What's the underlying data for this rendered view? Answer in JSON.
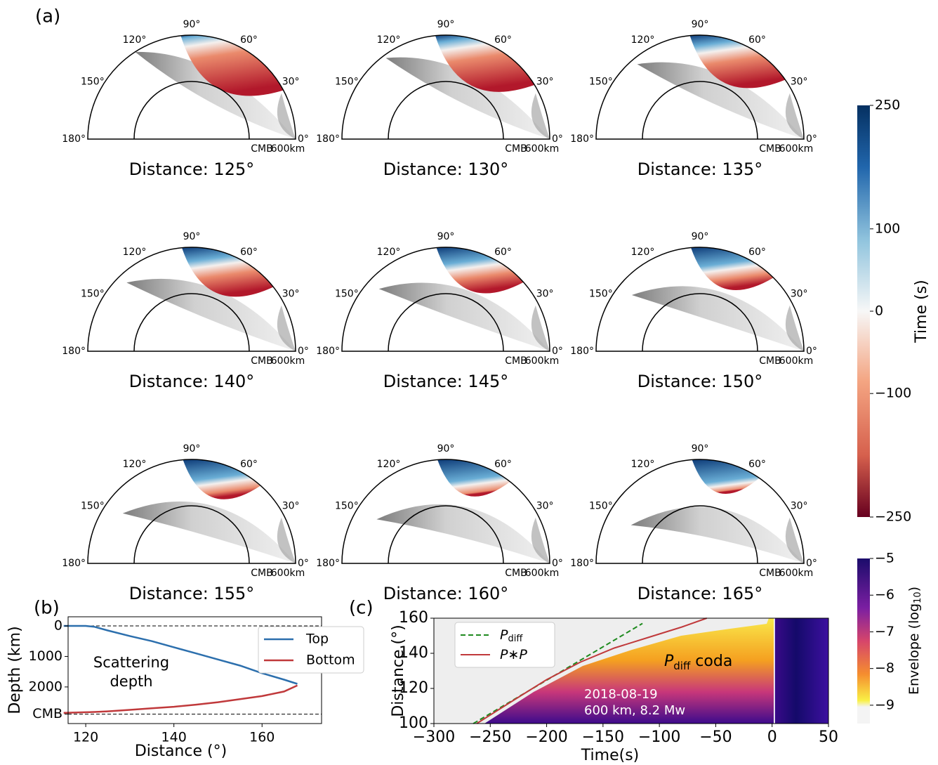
{
  "panel_labels": [
    "(a)",
    "(b)",
    "(c)"
  ],
  "chart_data": [
    {
      "type": "polar",
      "titles": [
        "Distance: 125°",
        "Distance: 130°",
        "Distance: 135°",
        "Distance: 140°",
        "Distance: 145°",
        "Distance: 150°",
        "Distance: 155°",
        "Distance: 160°",
        "Distance: 165°"
      ],
      "angle_ticks": [
        {
          "value": 0,
          "label": "0°"
        },
        {
          "value": 30,
          "label": "30°"
        },
        {
          "value": 60,
          "label": "60°"
        },
        {
          "value": 90,
          "label": "90°"
        },
        {
          "value": 120,
          "label": "120°"
        },
        {
          "value": 150,
          "label": "150°"
        },
        {
          "value": 180,
          "label": "180°"
        }
      ],
      "inner_label": "CMB",
      "outer_label": "600km",
      "colorbar": {
        "label": "Time (s)",
        "ylim": [
          -250,
          250
        ],
        "yticks": [
          250,
          100,
          0,
          {
            "value": -100,
            "label": "−100"
          },
          {
            "value": -250,
            "label": "−250"
          }
        ]
      }
    },
    {
      "type": "line",
      "xlabel": "Distance (°)",
      "ylabel": "Depth (km)",
      "x": [
        115,
        120,
        122,
        125,
        130,
        135,
        140,
        145,
        150,
        155,
        160,
        165,
        168
      ],
      "series": [
        {
          "name": "Top",
          "color": "#2c6fad",
          "values": [
            0,
            0,
            30,
            150,
            330,
            500,
            700,
            900,
            1100,
            1300,
            1550,
            1760,
            1900
          ]
        },
        {
          "name": "Bottom",
          "color": "#c0393b",
          "values": [
            2850,
            2830,
            2820,
            2800,
            2750,
            2700,
            2650,
            2580,
            2500,
            2400,
            2300,
            2150,
            1950
          ]
        }
      ],
      "xlim": [
        116,
        173.5
      ],
      "ylim": [
        3200,
        -300
      ],
      "xticks": [
        120,
        140,
        160
      ],
      "yticks": [
        0,
        1000,
        2000,
        {
          "value": 2891,
          "label": "CMB"
        }
      ],
      "hlines": [
        0,
        2891
      ],
      "annotation": [
        "Scattering",
        "depth"
      ]
    },
    {
      "type": "heatmap",
      "xlabel": "Time(s)",
      "ylabel": "Distance (°)",
      "xlim": [
        -300,
        50
      ],
      "ylim": [
        100,
        160
      ],
      "xticks": [
        {
          "value": -300,
          "label": "−300"
        },
        {
          "value": -250,
          "label": "−250"
        },
        {
          "value": -200,
          "label": "−200"
        },
        {
          "value": -150,
          "label": "−150"
        },
        {
          "value": -100,
          "label": "−100"
        },
        {
          "value": -50,
          "label": "−50"
        },
        0,
        50
      ],
      "yticks": [
        100,
        120,
        140,
        160
      ],
      "series": [
        {
          "name": "P",
          "name_sub": "diff",
          "color": "#1e8a1e",
          "dash": true,
          "x": [
            -265,
            -115
          ],
          "values": [
            100,
            157
          ]
        },
        {
          "name": "P∗P",
          "color": "#c0393b",
          "x": [
            -262,
            -230,
            -200,
            -170,
            -140,
            -110,
            -80,
            -58
          ],
          "values": [
            100,
            113,
            125,
            135,
            143,
            149,
            155,
            160
          ]
        }
      ],
      "coda_label": {
        "text": "P",
        "sub": "diff",
        "rest": " coda"
      },
      "event": [
        "2018-08-19",
        "600 km, 8.2 Mw"
      ],
      "colorbar": {
        "label": {
          "text": "Envelope (log",
          "sub": "10",
          "rest": ")"
        },
        "ylim": [
          -9.5,
          -5
        ],
        "yticks": [
          {
            "value": -5,
            "label": "−5"
          },
          {
            "value": -6,
            "label": "−6"
          },
          {
            "value": -7,
            "label": "−7"
          },
          {
            "value": -8,
            "label": "−8"
          },
          {
            "value": -9,
            "label": "−9"
          }
        ]
      }
    }
  ]
}
